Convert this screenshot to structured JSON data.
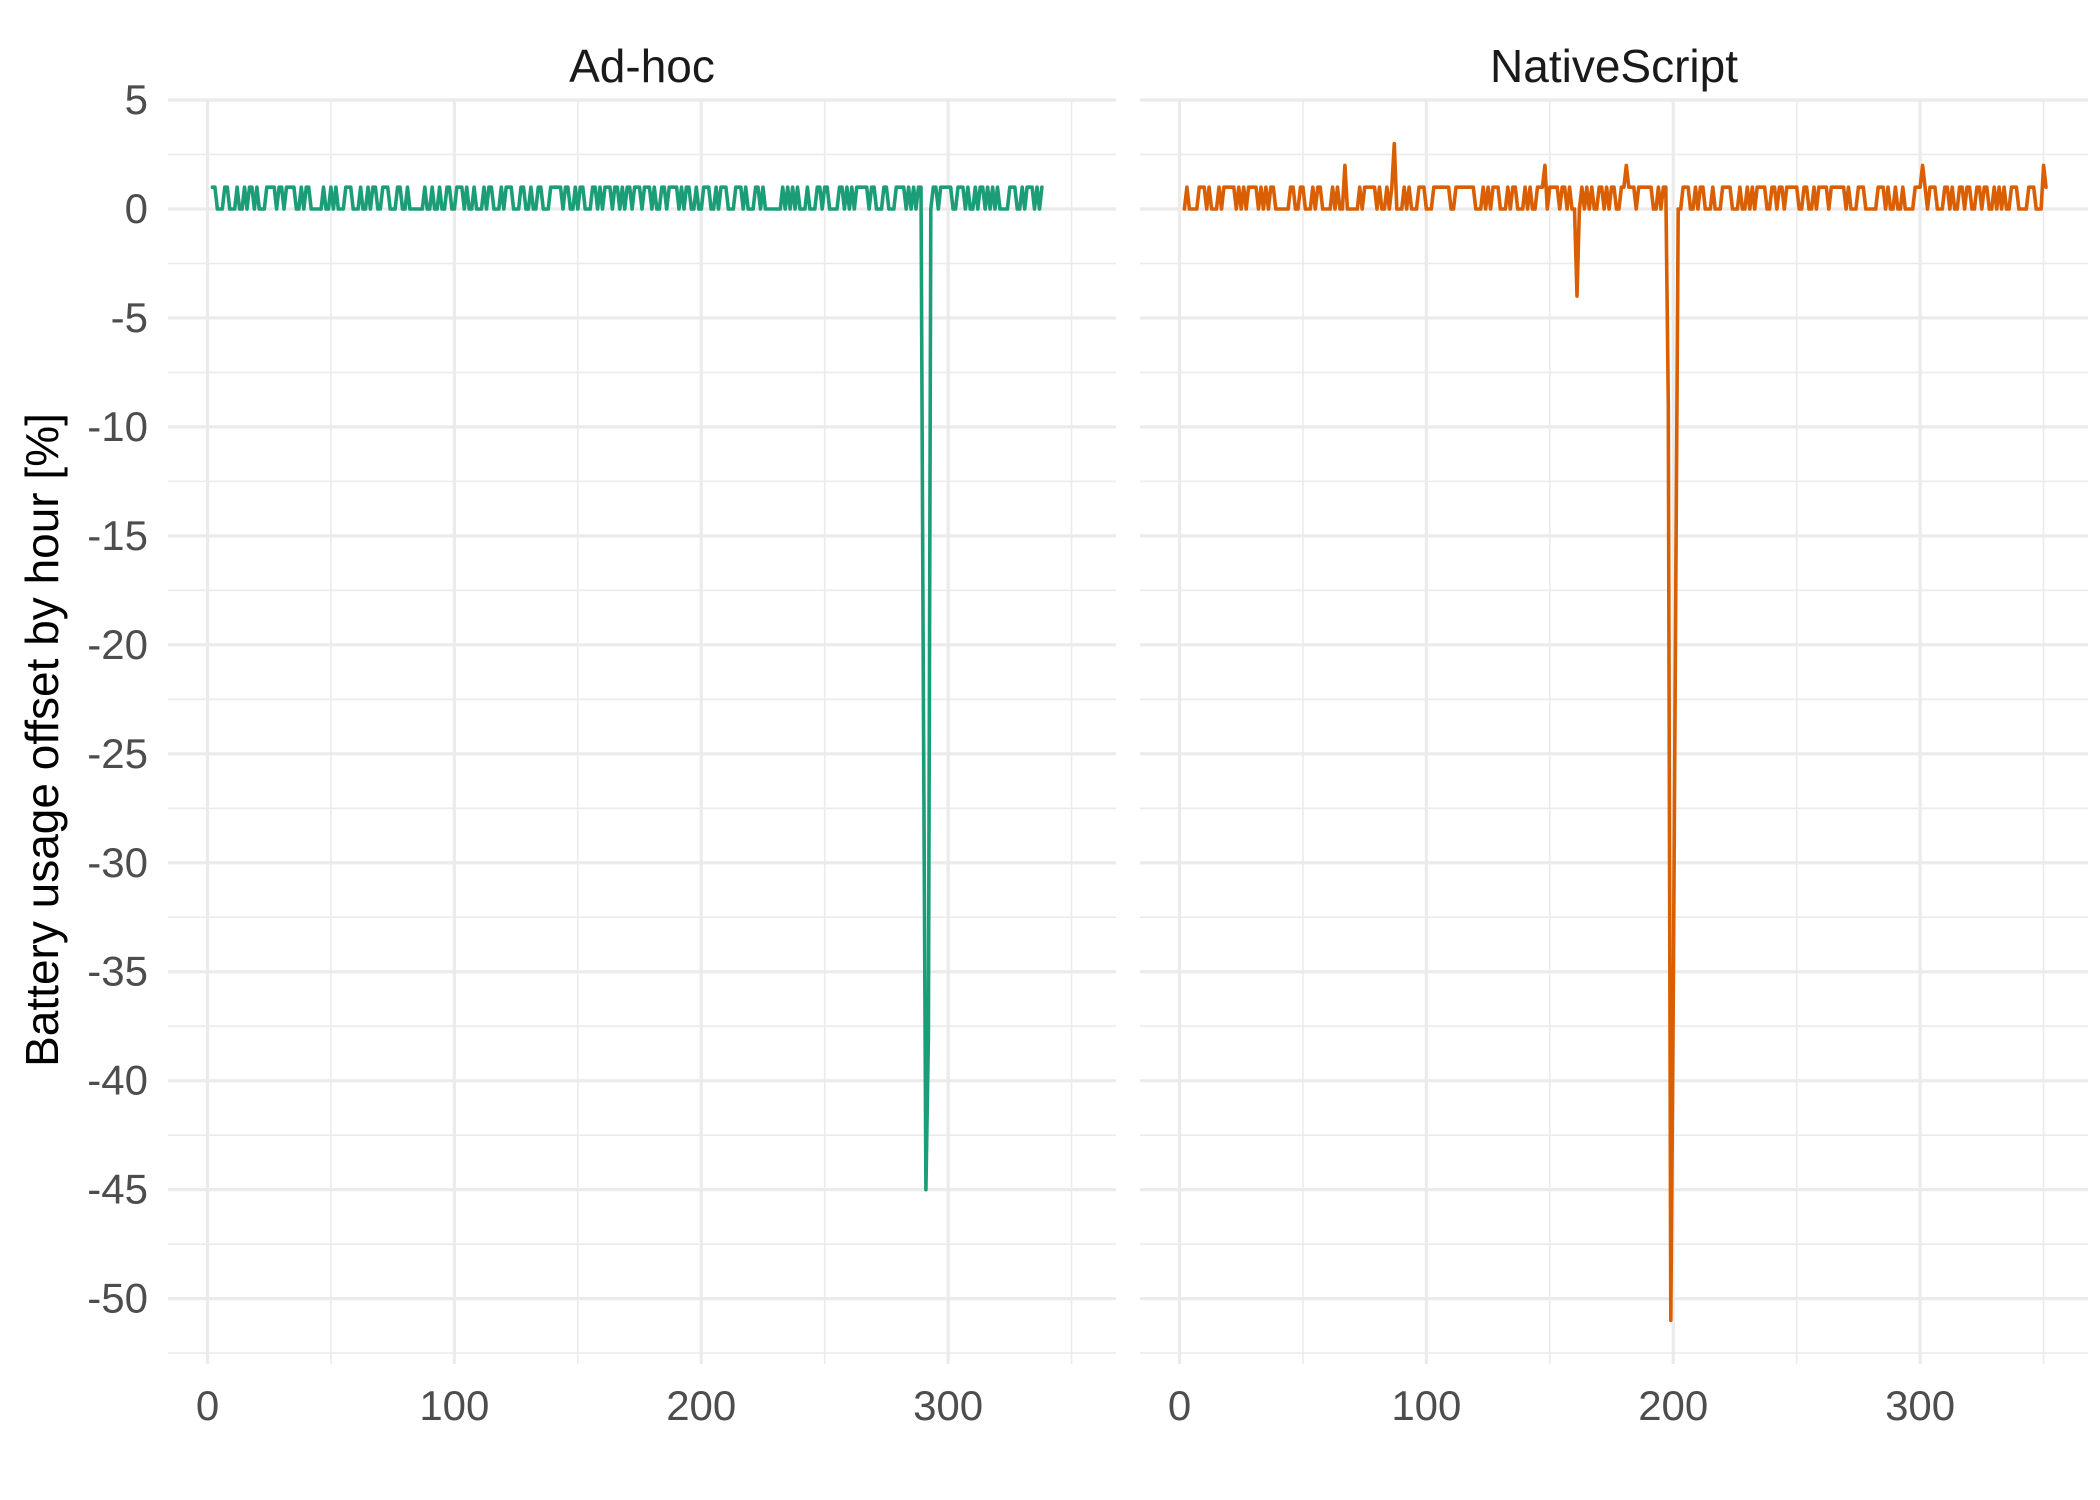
{
  "chart_data": {
    "type": "line",
    "ylabel": "Battery usage offset by hour [%]",
    "xlabel": "",
    "ylim": [
      -53,
      5
    ],
    "y_ticks": [
      5,
      0,
      -5,
      -10,
      -15,
      -20,
      -25,
      -30,
      -35,
      -40,
      -45,
      -50
    ],
    "x_ticks": [
      0,
      100,
      200,
      300
    ],
    "grid": true,
    "legend": "none",
    "panels": [
      {
        "title": "Ad-hoc",
        "color": "#1b9e77",
        "xlim": [
          -16,
          368
        ],
        "x_range": [
          2,
          338
        ],
        "baseline_oscillation": [
          0,
          1
        ],
        "events": [
          {
            "x": 288,
            "y": 1
          },
          {
            "x": 290,
            "y": -22.5
          },
          {
            "x": 291,
            "y": -45
          },
          {
            "x": 292,
            "y": -38
          },
          {
            "x": 293,
            "y": 0
          },
          {
            "x": 296,
            "y": 0
          }
        ]
      },
      {
        "title": "NativeScript",
        "color": "#d95f02",
        "xlim": [
          -16,
          368
        ],
        "x_range": [
          2,
          351
        ],
        "baseline_oscillation": [
          0,
          1
        ],
        "events": [
          {
            "x": 67,
            "y": 2
          },
          {
            "x": 87,
            "y": 3
          },
          {
            "x": 148,
            "y": 2
          },
          {
            "x": 160,
            "y": 0
          },
          {
            "x": 161,
            "y": -4
          },
          {
            "x": 162,
            "y": 0
          },
          {
            "x": 181,
            "y": 2
          },
          {
            "x": 198,
            "y": -9
          },
          {
            "x": 199,
            "y": -51
          },
          {
            "x": 200,
            "y": -36
          },
          {
            "x": 201,
            "y": -18
          },
          {
            "x": 202,
            "y": 0
          },
          {
            "x": 301,
            "y": 2
          },
          {
            "x": 350,
            "y": 2
          }
        ]
      }
    ]
  }
}
